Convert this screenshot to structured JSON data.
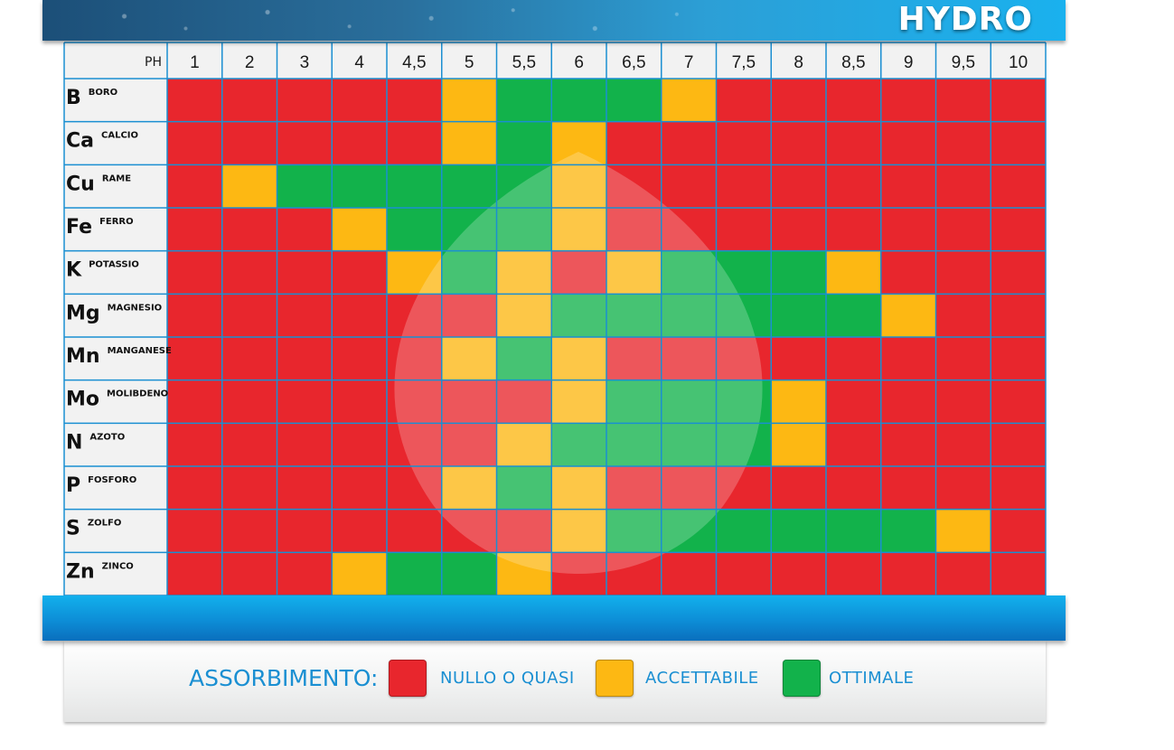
{
  "header": {
    "title": "HYDRO"
  },
  "colors": {
    "nullo": "#e8262d",
    "accettabile": "#fdb813",
    "ottimale": "#12b24b",
    "grid": "#1a8fd2",
    "text_blue": "#1a8fd2"
  },
  "legend": {
    "title": "ASSORBIMENTO:",
    "items": [
      {
        "key": "nullo",
        "label": "NULLO O QUASI"
      },
      {
        "key": "accettabile",
        "label": "ACCETTABILE"
      },
      {
        "key": "ottimale",
        "label": "OTTIMALE"
      }
    ]
  },
  "chart_data": {
    "type": "heatmap",
    "corner_label": "PH",
    "x_labels": [
      "1",
      "2",
      "3",
      "4",
      "4,5",
      "5",
      "5,5",
      "6",
      "6,5",
      "7",
      "7,5",
      "8",
      "8,5",
      "9",
      "9,5",
      "10"
    ],
    "rows": [
      {
        "symbol": "B",
        "name": "BORO",
        "levels": [
          "N",
          "N",
          "N",
          "N",
          "N",
          "A",
          "O",
          "O",
          "O",
          "A",
          "N",
          "N",
          "N",
          "N",
          "N",
          "N"
        ]
      },
      {
        "symbol": "Ca",
        "name": "CALCIO",
        "levels": [
          "N",
          "N",
          "N",
          "N",
          "N",
          "A",
          "O",
          "A",
          "N",
          "N",
          "N",
          "N",
          "N",
          "N",
          "N",
          "N"
        ]
      },
      {
        "symbol": "Cu",
        "name": "RAME",
        "levels": [
          "N",
          "A",
          "O",
          "O",
          "O",
          "O",
          "O",
          "A",
          "N",
          "N",
          "N",
          "N",
          "N",
          "N",
          "N",
          "N"
        ]
      },
      {
        "symbol": "Fe",
        "name": "FERRO",
        "levels": [
          "N",
          "N",
          "N",
          "A",
          "O",
          "O",
          "O",
          "A",
          "N",
          "N",
          "N",
          "N",
          "N",
          "N",
          "N",
          "N"
        ]
      },
      {
        "symbol": "K",
        "name": "POTASSIO",
        "levels": [
          "N",
          "N",
          "N",
          "N",
          "A",
          "O",
          "A",
          "N",
          "A",
          "O",
          "O",
          "O",
          "A",
          "N",
          "N",
          "N"
        ]
      },
      {
        "symbol": "Mg",
        "name": "MAGNESIO",
        "levels": [
          "N",
          "N",
          "N",
          "N",
          "N",
          "N",
          "A",
          "O",
          "O",
          "O",
          "O",
          "O",
          "O",
          "A",
          "N",
          "N"
        ]
      },
      {
        "symbol": "Mn",
        "name": "MANGANESE",
        "levels": [
          "N",
          "N",
          "N",
          "N",
          "N",
          "A",
          "O",
          "A",
          "N",
          "N",
          "N",
          "N",
          "N",
          "N",
          "N",
          "N"
        ]
      },
      {
        "symbol": "Mo",
        "name": "MOLIBDENO",
        "levels": [
          "N",
          "N",
          "N",
          "N",
          "N",
          "N",
          "N",
          "A",
          "O",
          "O",
          "O",
          "A",
          "N",
          "N",
          "N",
          "N"
        ]
      },
      {
        "symbol": "N",
        "name": "AZOTO",
        "levels": [
          "N",
          "N",
          "N",
          "N",
          "N",
          "N",
          "A",
          "O",
          "O",
          "O",
          "O",
          "A",
          "N",
          "N",
          "N",
          "N"
        ]
      },
      {
        "symbol": "P",
        "name": "FOSFORO",
        "levels": [
          "N",
          "N",
          "N",
          "N",
          "N",
          "A",
          "O",
          "A",
          "N",
          "N",
          "N",
          "N",
          "N",
          "N",
          "N",
          "N"
        ]
      },
      {
        "symbol": "S",
        "name": "ZOLFO",
        "levels": [
          "N",
          "N",
          "N",
          "N",
          "N",
          "N",
          "N",
          "A",
          "O",
          "O",
          "O",
          "O",
          "O",
          "O",
          "A",
          "N"
        ]
      },
      {
        "symbol": "Zn",
        "name": "ZINCO",
        "levels": [
          "N",
          "N",
          "N",
          "A",
          "O",
          "O",
          "A",
          "N",
          "N",
          "N",
          "N",
          "N",
          "N",
          "N",
          "N",
          "N"
        ]
      }
    ],
    "level_legend": {
      "N": "NULLO O QUASI",
      "A": "ACCETTABILE",
      "O": "OTTIMALE"
    }
  }
}
